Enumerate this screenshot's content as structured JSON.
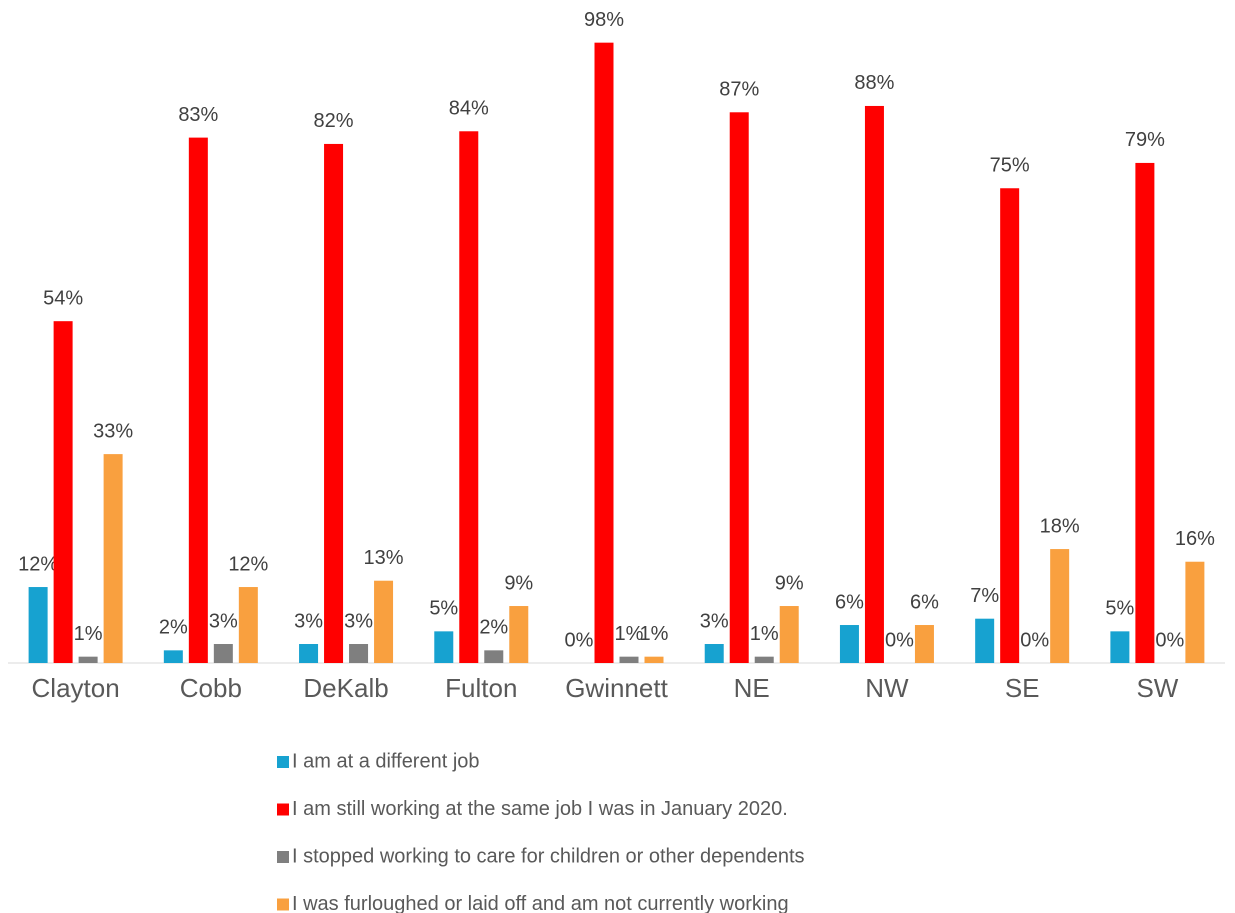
{
  "chart_data": {
    "type": "bar",
    "categories": [
      "Clayton",
      "Cobb",
      "DeKalb",
      "Fulton",
      "Gwinnett",
      "NE",
      "NW",
      "SE",
      "SW"
    ],
    "ylim": [
      0,
      100
    ],
    "series": [
      {
        "name": "I am at a different job",
        "color": "#17a2d0",
        "values": [
          12,
          2,
          3,
          5,
          0,
          3,
          6,
          7,
          5
        ],
        "value_labels": [
          "12%",
          "2%",
          "3%",
          "5%",
          "0%",
          "3%",
          "6%",
          "7%",
          "5%"
        ]
      },
      {
        "name": "I am still working at the same job I was in January 2020.",
        "color": "#ff0000",
        "values": [
          54,
          83,
          82,
          84,
          98,
          87,
          88,
          75,
          79
        ],
        "value_labels": [
          "54%",
          "83%",
          "82%",
          "84%",
          "98%",
          "87%",
          "88%",
          "75%",
          "79%"
        ]
      },
      {
        "name": "I stopped working to care for children or other dependents",
        "color": "#7f7f7f",
        "values": [
          1,
          3,
          3,
          2,
          1,
          1,
          0,
          0,
          0
        ],
        "value_labels": [
          "1%",
          "3%",
          "3%",
          "2%",
          "1%",
          "1%",
          "0%",
          "0%",
          "0%"
        ]
      },
      {
        "name": "I was furloughed or laid off and am not currently working",
        "color": "#f9a03f",
        "values": [
          33,
          12,
          13,
          9,
          1,
          9,
          6,
          18,
          16
        ],
        "value_labels": [
          "33%",
          "12%",
          "13%",
          "9%",
          "1%",
          "9%",
          "6%",
          "18%",
          "16%"
        ]
      }
    ]
  }
}
